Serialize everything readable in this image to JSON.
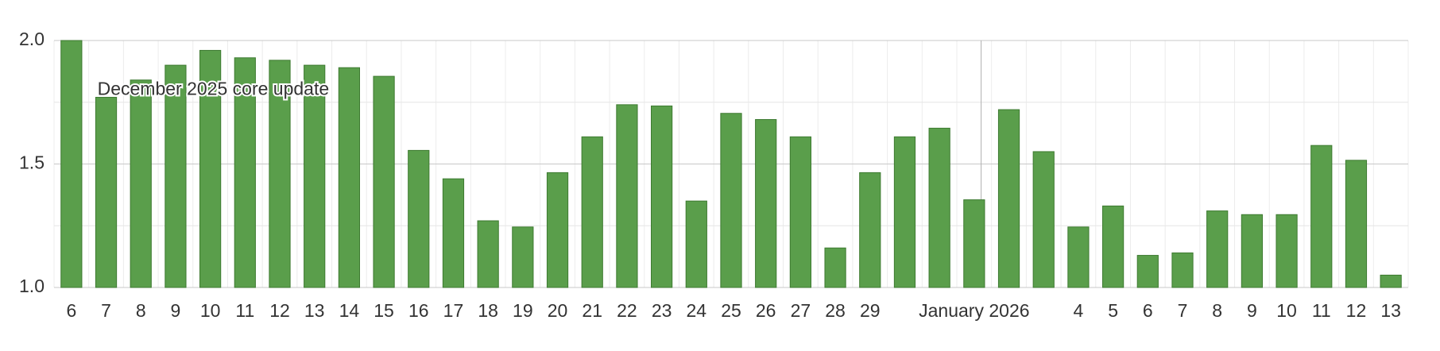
{
  "chart_data": {
    "type": "bar",
    "categories": [
      "6",
      "7",
      "8",
      "9",
      "10",
      "11",
      "12",
      "13",
      "14",
      "15",
      "16",
      "17",
      "18",
      "19",
      "20",
      "21",
      "22",
      "23",
      "24",
      "25",
      "26",
      "27",
      "28",
      "29",
      null,
      null,
      "January 2026",
      null,
      null,
      "4",
      "5",
      "6",
      "7",
      "8",
      "9",
      "10",
      "11",
      "12",
      "13"
    ],
    "values": [
      2.0,
      1.77,
      1.84,
      1.9,
      1.96,
      1.93,
      1.92,
      1.9,
      1.89,
      1.855,
      1.555,
      1.44,
      1.27,
      1.245,
      1.465,
      1.61,
      1.74,
      1.735,
      1.35,
      1.705,
      1.68,
      1.61,
      1.16,
      1.465,
      1.61,
      1.645,
      1.355,
      1.72,
      1.55,
      1.245,
      1.33,
      1.13,
      1.14,
      1.31,
      1.295,
      1.295,
      1.575,
      1.515,
      1.05
    ],
    "color": "#5a9e4b",
    "ylim": [
      1.0,
      2.0
    ],
    "yticks": [
      {
        "value": 1,
        "label": "1.0"
      },
      {
        "value": 1.5,
        "label": "1.5"
      },
      {
        "value": 2,
        "label": "2.0"
      }
    ],
    "minor_yticks": [
      1.25,
      1.75
    ],
    "grid": true,
    "annotation": "December 2025 core update"
  }
}
